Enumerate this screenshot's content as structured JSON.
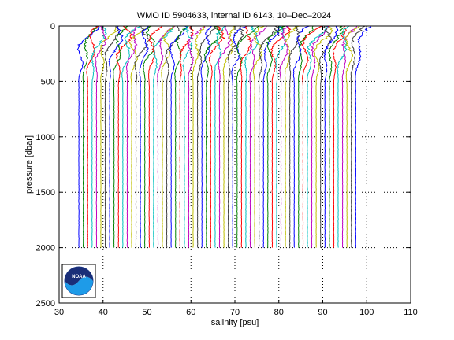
{
  "chart_data": {
    "type": "line",
    "title": "WMO ID 5904633, internal ID 6143, 10–Dec–2024",
    "xlabel": "salinity [psu]",
    "ylabel": "pressure [dbar]",
    "xlim": [
      30,
      110
    ],
    "ylim": [
      0,
      2500
    ],
    "y_reversed": true,
    "grid": true,
    "x_ticks": [
      30,
      40,
      50,
      60,
      70,
      80,
      90,
      100,
      110
    ],
    "y_ticks": [
      0,
      500,
      1000,
      1500,
      2000,
      2500
    ],
    "profile_count": 64,
    "first_profile_offset_psu": 34.5,
    "offset_step_psu": 1.0,
    "profile_max_pressure": 2000,
    "profile_colors": [
      "#0000ff",
      "#008000",
      "#ff0000",
      "#00bfbf",
      "#bf00bf",
      "#bfbf00",
      "#404040"
    ]
  },
  "logo": {
    "name": "noaa-logo",
    "text": "NOAA"
  }
}
